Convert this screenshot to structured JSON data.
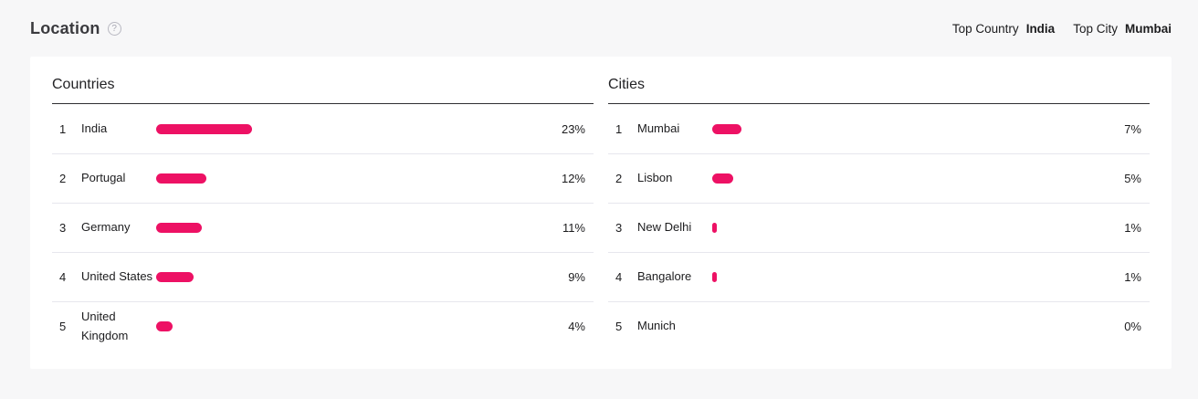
{
  "header": {
    "title": "Location",
    "help_icon_glyph": "?",
    "top_stats": [
      {
        "label": "Top Country",
        "value": "India"
      },
      {
        "label": "Top City",
        "value": "Mumbai"
      }
    ]
  },
  "colors": {
    "accent": "#ED1164",
    "page_background": "#F7F7F8",
    "card_background": "#FFFFFF",
    "divider": "#E7E7ED",
    "header_underline": "#2E2E32",
    "text": "#1C1C1E",
    "muted": "#A9A9B3"
  },
  "lists": {
    "countries": {
      "header": "Countries",
      "items": [
        {
          "rank": "1",
          "label": "India",
          "pct": 23,
          "pct_label": "23%"
        },
        {
          "rank": "2",
          "label": "Portugal",
          "pct": 12,
          "pct_label": "12%"
        },
        {
          "rank": "3",
          "label": "Germany",
          "pct": 11,
          "pct_label": "11%"
        },
        {
          "rank": "4",
          "label": "United States",
          "pct": 9,
          "pct_label": "9%"
        },
        {
          "rank": "5",
          "label": "United Kingdom",
          "pct": 4,
          "pct_label": "4%"
        }
      ]
    },
    "cities": {
      "header": "Cities",
      "items": [
        {
          "rank": "1",
          "label": "Mumbai",
          "pct": 7,
          "pct_label": "7%"
        },
        {
          "rank": "2",
          "label": "Lisbon",
          "pct": 5,
          "pct_label": "5%"
        },
        {
          "rank": "3",
          "label": "New Delhi",
          "pct": 1,
          "pct_label": "1%"
        },
        {
          "rank": "4",
          "label": "Bangalore",
          "pct": 1,
          "pct_label": "1%"
        },
        {
          "rank": "5",
          "label": "Munich",
          "pct": 0,
          "pct_label": "0%"
        }
      ]
    }
  },
  "chart_data": [
    {
      "type": "bar",
      "title": "Countries",
      "categories": [
        "India",
        "Portugal",
        "Germany",
        "United States",
        "United Kingdom"
      ],
      "values": [
        23,
        12,
        11,
        9,
        4
      ],
      "unit": "%",
      "orientation": "horizontal",
      "xlim": [
        0,
        100
      ],
      "grid": false,
      "value_labels": [
        "23%",
        "12%",
        "11%",
        "9%",
        "4%"
      ]
    },
    {
      "type": "bar",
      "title": "Cities",
      "categories": [
        "Mumbai",
        "Lisbon",
        "New Delhi",
        "Bangalore",
        "Munich"
      ],
      "values": [
        7,
        5,
        1,
        1,
        0
      ],
      "unit": "%",
      "orientation": "horizontal",
      "xlim": [
        0,
        100
      ],
      "grid": false,
      "value_labels": [
        "7%",
        "5%",
        "1%",
        "1%",
        "0%"
      ]
    }
  ]
}
